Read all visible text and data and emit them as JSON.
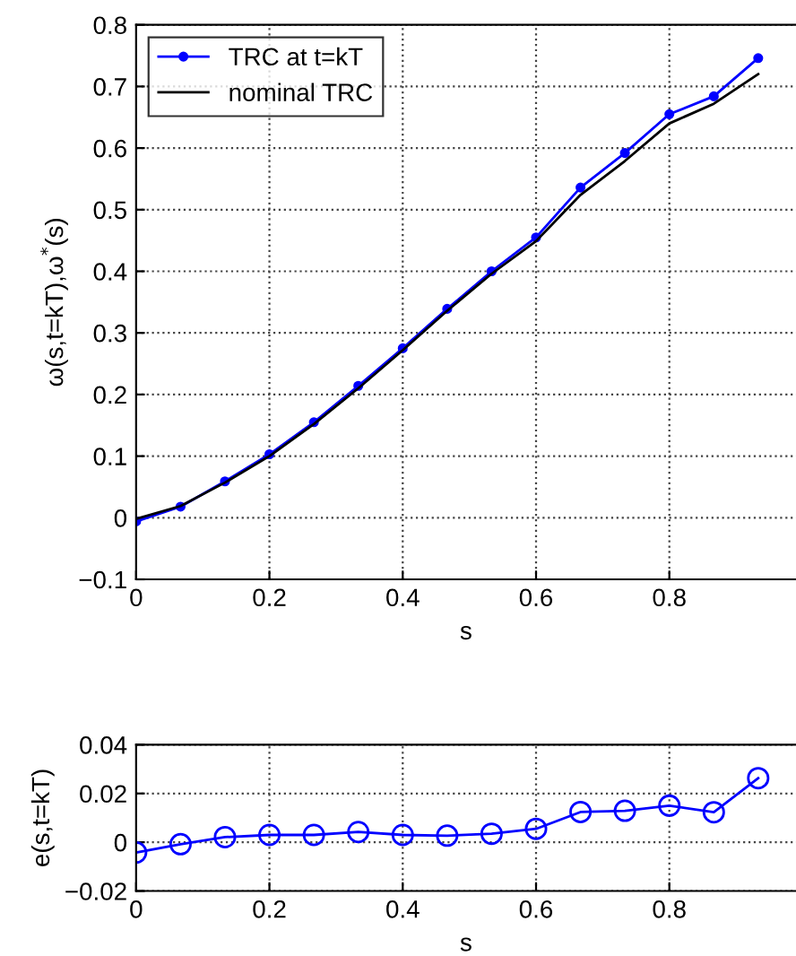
{
  "chart_data": [
    {
      "type": "line",
      "xlabel": "s",
      "ylabel": "ω(s,t=kT),ω$^{*}$(s)",
      "x": [
        0,
        0.0667,
        0.1333,
        0.2,
        0.2667,
        0.3333,
        0.4,
        0.4667,
        0.5333,
        0.6,
        0.6667,
        0.7333,
        0.8,
        0.8667,
        0.9333
      ],
      "series": [
        {
          "name": "TRC at t=kT",
          "color": "#0000ff",
          "marker": "circle",
          "values": [
            -0.006,
            0.018,
            0.059,
            0.103,
            0.155,
            0.214,
            0.275,
            0.339,
            0.4,
            0.455,
            0.536,
            0.592,
            0.655,
            0.684,
            0.746
          ]
        },
        {
          "name": "nominal TRC",
          "color": "#000000",
          "marker": "none",
          "values": [
            -0.002,
            0.019,
            0.057,
            0.1,
            0.152,
            0.21,
            0.272,
            0.336,
            0.396,
            0.449,
            0.524,
            0.579,
            0.64,
            0.672,
            0.72
          ]
        }
      ],
      "xlim": [
        0,
        0.99
      ],
      "xticks": [
        0,
        0.2,
        0.4,
        0.6,
        0.8
      ],
      "ylim": [
        -0.1,
        0.8
      ],
      "yticks": [
        {
          "value": -0.1,
          "label": "−0.1"
        },
        0,
        0.1,
        0.2,
        0.3,
        0.4,
        0.5,
        0.6,
        0.7,
        0.8
      ],
      "grid": true,
      "legend": "top left",
      "line_style": "solid"
    },
    {
      "type": "line",
      "xlabel": "s",
      "ylabel": "e(s,t=kT)",
      "x": [
        0,
        0.0667,
        0.1333,
        0.2,
        0.2667,
        0.3333,
        0.4,
        0.4667,
        0.5333,
        0.6,
        0.6667,
        0.7333,
        0.8,
        0.8667,
        0.9333
      ],
      "series": [
        {
          "color": "#0000ff",
          "marker": "circle",
          "values": [
            -0.0042,
            -0.0008,
            0.0021,
            0.003,
            0.003,
            0.0042,
            0.003,
            0.0027,
            0.0035,
            0.0055,
            0.0124,
            0.0129,
            0.015,
            0.0123,
            0.0263
          ]
        }
      ],
      "xlim": [
        0,
        0.99
      ],
      "xticks": [
        0,
        0.2,
        0.4,
        0.6,
        0.8
      ],
      "ylim": [
        -0.02,
        0.04
      ],
      "yticks": [
        {
          "value": -0.02,
          "label": "−0.02"
        },
        0,
        0.02,
        0.04
      ],
      "grid": true,
      "legend": false,
      "line_style": "solid"
    }
  ]
}
